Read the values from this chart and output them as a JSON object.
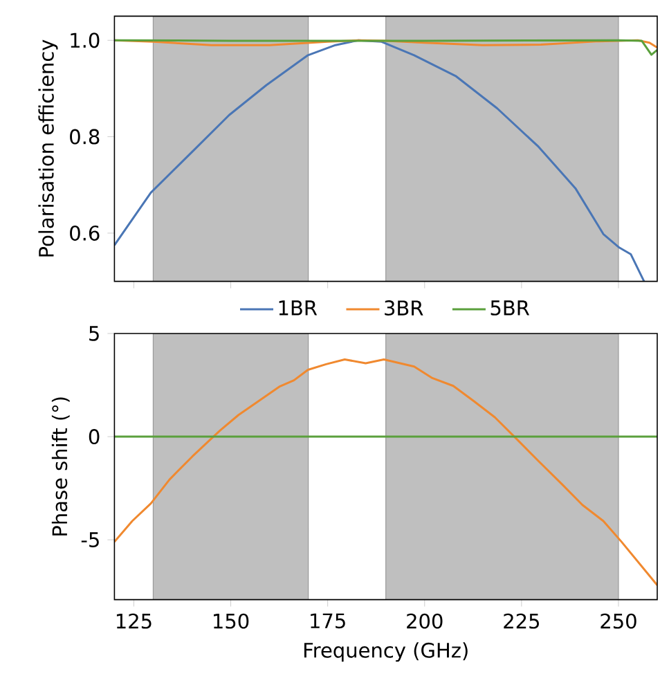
{
  "chart_data": [
    {
      "type": "line",
      "ylabel": "Polarisation efficiency",
      "xlim": [
        120,
        260
      ],
      "ylim": [
        0.5,
        1.05
      ],
      "xticks": [
        125,
        150,
        175,
        200,
        225,
        250
      ],
      "yticks": [
        0.6,
        0.8,
        {
          "value": 1.0,
          "label": "1.0"
        }
      ],
      "tick_labels": "y",
      "legend": "bottom",
      "grid": false,
      "bands": [
        {
          "axis": "x",
          "from": 130,
          "to": 170,
          "color": "#bfbfbf"
        },
        {
          "axis": "x",
          "from": 190,
          "to": 250,
          "color": "#bfbfbf"
        }
      ],
      "series": [
        {
          "name": "1BR",
          "color": "#4a76b5",
          "x": [
            120,
            129.4,
            140.1,
            149.6,
            159.2,
            169.9,
            177,
            182.9,
            188.9,
            197.3,
            208,
            218.7,
            229.4,
            238.9,
            246.1,
            250.2,
            253.2,
            256.6
          ],
          "values": [
            0.575,
            0.684,
            0.769,
            0.845,
            0.907,
            0.969,
            0.99,
            1.0,
            0.997,
            0.969,
            0.926,
            0.859,
            0.779,
            0.693,
            0.598,
            0.57,
            0.556,
            0.5
          ]
        },
        {
          "name": "3BR",
          "color": "#f0892f",
          "x": [
            120,
            130,
            145,
            160,
            175,
            183,
            190,
            200,
            215,
            230,
            245,
            255,
            258,
            260
          ],
          "values": [
            1.0,
            0.997,
            0.99,
            0.99,
            0.997,
            1.0,
            0.999,
            0.995,
            0.99,
            0.991,
            0.998,
            1.0,
            0.995,
            0.985
          ]
        },
        {
          "name": "5BR",
          "color": "#5aa03c",
          "x": [
            120,
            150,
            200,
            250,
            256,
            258.5,
            260
          ],
          "values": [
            1.0,
            0.999,
            0.999,
            1.0,
            0.999,
            0.97,
            0.98
          ]
        }
      ]
    },
    {
      "type": "line",
      "xlabel": "Frequency (GHz)",
      "ylabel": "Phase shift (°)",
      "xlim": [
        120,
        260
      ],
      "ylim": [
        -7.9,
        5
      ],
      "xticks": [
        125,
        150,
        175,
        200,
        225,
        250
      ],
      "yticks": [
        -5,
        0,
        5
      ],
      "grid": false,
      "bands": [
        {
          "axis": "x",
          "from": 130,
          "to": 170,
          "color": "#bfbfbf"
        },
        {
          "axis": "x",
          "from": 190,
          "to": 250,
          "color": "#bfbfbf"
        }
      ],
      "series": [
        {
          "color": "#f0892f",
          "x": [
            120,
            124.6,
            129.4,
            134.2,
            140.1,
            144.9,
            147.3,
            152,
            158,
            162.7,
            166.3,
            169.9,
            174.6,
            179.4,
            184.8,
            189.5,
            197.3,
            202,
            207.4,
            212.7,
            218.1,
            223.5,
            229.4,
            235.4,
            240.7,
            246.1,
            250.8,
            260
          ],
          "values": [
            -5.1,
            -4.09,
            -3.24,
            -2.08,
            -0.96,
            -0.11,
            0.31,
            1.05,
            1.83,
            2.44,
            2.73,
            3.24,
            3.51,
            3.74,
            3.56,
            3.74,
            3.4,
            2.84,
            2.46,
            1.72,
            0.94,
            -0.07,
            -1.19,
            -2.3,
            -3.31,
            -4.09,
            -5.1,
            -7.2
          ]
        },
        {
          "color": "#5aa03c",
          "x": [
            120,
            260
          ],
          "values": [
            0,
            0
          ]
        }
      ]
    }
  ]
}
